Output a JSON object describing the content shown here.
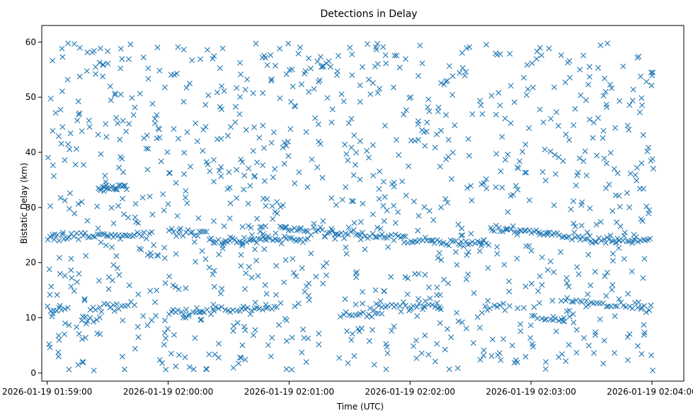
{
  "chart_data": {
    "type": "scatter",
    "title": "Detections in Delay",
    "xlabel": "Time (UTC)",
    "ylabel": "Bistatic Delay (km)",
    "x_ticks": [
      "2026-01-19 01:59:00",
      "2026-01-19 02:00:00",
      "2026-01-19 02:01:00",
      "2026-01-19 02:02:00",
      "2026-01-19 02:03:00",
      "2026-01-19 02:04:00"
    ],
    "y_ticks": [
      "0",
      "10",
      "20",
      "30",
      "40",
      "50",
      "60"
    ],
    "x_range_seconds": [
      0,
      301.5
    ],
    "x_axis_start": "2026-01-19 01:58:57.3",
    "xlim": [
      "2026-01-19 01:58:57.3",
      "2026-01-19 02:04:15.8"
    ],
    "ylim": [
      -1.5,
      63
    ],
    "marker": "x",
    "color": "#1f77b4",
    "grid": false,
    "tracks": [
      {
        "segments": [
          {
            "t": [
              0,
              11
            ],
            "y": [
              11.6,
              11.9
            ]
          },
          {
            "t": [
              17,
              27
            ],
            "y": [
              9.8,
              9.9
            ]
          },
          {
            "t": [
              21,
              44
            ],
            "y": [
              11.9,
              12.3
            ]
          },
          {
            "t": [
              60,
              95
            ],
            "y": [
              10.8,
              11.6
            ]
          },
          {
            "t": [
              95,
              115
            ],
            "y": [
              11.8,
              12.0
            ]
          },
          {
            "t": [
              145,
              165
            ],
            "y": [
              10.5,
              10.4
            ]
          },
          {
            "t": [
              160,
              196
            ],
            "y": [
              12.0,
              12.1
            ]
          },
          {
            "t": [
              215,
              230
            ],
            "y": [
              11.6,
              11.9
            ]
          },
          {
            "t": [
              240,
              258
            ],
            "y": [
              9.7,
              9.5
            ]
          },
          {
            "t": [
              255,
              300
            ],
            "y": [
              13.2,
              11.4
            ]
          }
        ],
        "n": 160,
        "jitter": 0.35
      },
      {
        "segments": [
          {
            "t": [
              0,
              50
            ],
            "y": [
              24.5,
              25.2
            ]
          },
          {
            "t": [
              60,
              80
            ],
            "y": [
              25.4,
              25.6
            ]
          },
          {
            "t": [
              80,
              130
            ],
            "y": [
              24.0,
              24.2
            ]
          },
          {
            "t": [
              115,
              200
            ],
            "y": [
              26.3,
              23.6
            ]
          },
          {
            "t": [
              200,
              220
            ],
            "y": [
              23.5,
              23.6
            ]
          },
          {
            "t": [
              220,
              255
            ],
            "y": [
              26.1,
              25.1
            ]
          },
          {
            "t": [
              255,
              270
            ],
            "y": [
              24.7,
              24.4
            ]
          },
          {
            "t": [
              270,
              300
            ],
            "y": [
              24.1,
              24.3
            ]
          }
        ],
        "n": 260,
        "jitter": 0.35
      },
      {
        "segments": [
          {
            "t": [
              25,
              40
            ],
            "y": [
              33.5,
              34.0
            ]
          },
          {
            "t": [
              300,
              300.5
            ],
            "y": [
              54.0,
              54.3
            ]
          }
        ],
        "n": 20,
        "jitter": 0.3
      }
    ],
    "noise": {
      "n": 1050,
      "t_range": [
        0,
        301
      ],
      "y_range": [
        0.4,
        59.8
      ]
    }
  }
}
